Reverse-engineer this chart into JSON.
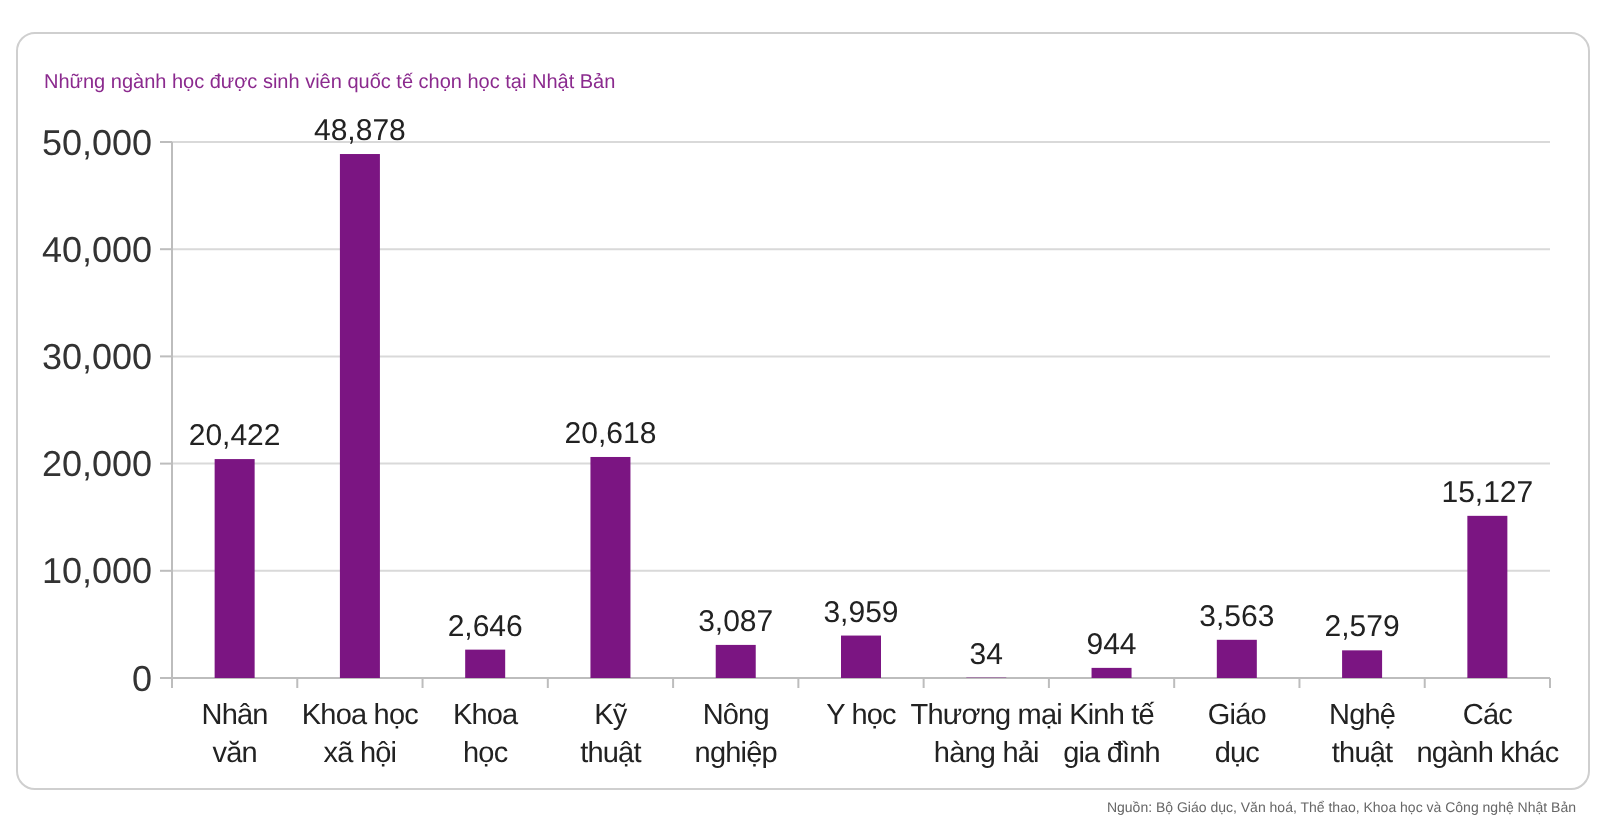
{
  "chart_data": {
    "type": "bar",
    "title": "Những ngành học được sinh viên quốc tế chọn học tại Nhật Bản",
    "categories": [
      "Nhân\nvăn",
      "Khoa học\nxã hội",
      "Khoa\nhọc",
      "Kỹ\nthuật",
      "Nông\nnghiệp",
      "Y học",
      "Thương mại\nhàng hải",
      "Kinh tế\ngia đình",
      "Giáo\ndục",
      "Nghệ\nthuật",
      "Các\nngành khác"
    ],
    "values": [
      20422,
      48878,
      2646,
      20618,
      3087,
      3959,
      34,
      944,
      3563,
      2579,
      15127
    ],
    "value_labels": [
      "20,422",
      "48,878",
      "2,646",
      "20,618",
      "3,087",
      "3,959",
      "34",
      "944",
      "3,563",
      "2,579",
      "15,127"
    ],
    "color": "#7b1582",
    "ylim": [
      0,
      50000
    ],
    "yticks": [
      {
        "value": 0,
        "label": "0"
      },
      {
        "value": 10000,
        "label": "10,000"
      },
      {
        "value": 20000,
        "label": "20,000"
      },
      {
        "value": 30000,
        "label": "30,000"
      },
      {
        "value": 40000,
        "label": "40,000"
      },
      {
        "value": 50000,
        "label": "50,000"
      }
    ],
    "grid": "y",
    "annotations": [
      "Nguồn:  Bộ Giáo dục, Văn hoá, Thể thao, Khoa học và Công nghệ Nhật Bản"
    ]
  }
}
